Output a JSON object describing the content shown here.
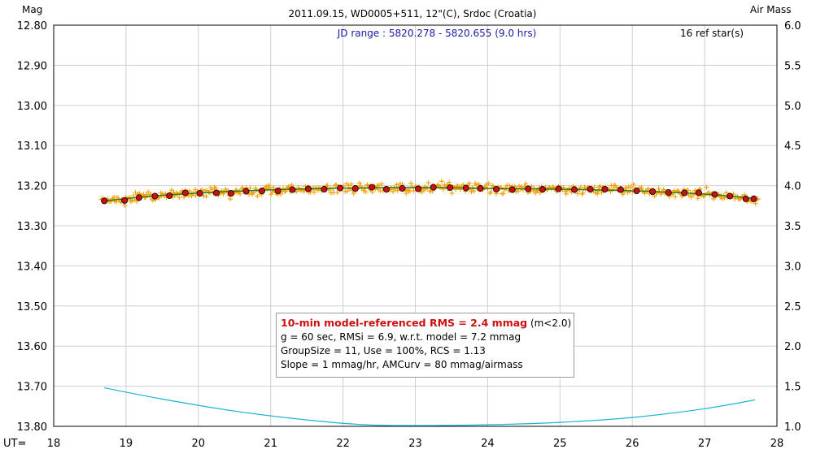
{
  "chart_data": {
    "type": "scatter",
    "title": "2011.09.15, WD0005+511, 12\"(C), Srdoc (Croatia)",
    "subtitle": "JD range : 5820.278 - 5820.655 (9.0 hrs)",
    "ref_stars": "16 ref star(s)",
    "ylabel": "Mag",
    "y2label": "Air Mass",
    "xlabel": "UT=",
    "xlim": [
      18,
      28
    ],
    "ylim": [
      12.8,
      13.8
    ],
    "y2lim": [
      1.0,
      6.0
    ],
    "y_inverted": true,
    "x_ticks": [
      "18",
      "19",
      "20",
      "21",
      "22",
      "23",
      "24",
      "25",
      "26",
      "27",
      "28"
    ],
    "y_ticks": [
      "12.80",
      "12.90",
      "13.00",
      "13.10",
      "13.20",
      "13.30",
      "13.40",
      "13.50",
      "13.60",
      "13.70",
      "13.80"
    ],
    "y2_ticks": [
      "6.0",
      "5.5",
      "5.0",
      "4.5",
      "4.0",
      "3.5",
      "3.0",
      "2.5",
      "2.0",
      "1.5",
      "1.0"
    ],
    "grid": true,
    "series": [
      {
        "kind": "binned",
        "color": "#cc1010",
        "x": [
          18.7,
          18.98,
          19.18,
          19.4,
          19.6,
          19.82,
          20.02,
          20.25,
          20.45,
          20.66,
          20.88,
          21.1,
          21.3,
          21.52,
          21.74,
          21.96,
          22.17,
          22.4,
          22.6,
          22.82,
          23.04,
          23.25,
          23.48,
          23.7,
          23.9,
          24.12,
          24.34,
          24.56,
          24.76,
          24.98,
          25.2,
          25.42,
          25.62,
          25.84,
          26.06,
          26.28,
          26.5,
          26.72,
          26.92,
          27.14,
          27.35,
          27.57,
          27.68
        ],
        "y": [
          13.238,
          13.237,
          13.23,
          13.226,
          13.225,
          13.218,
          13.219,
          13.218,
          13.219,
          13.214,
          13.213,
          13.213,
          13.21,
          13.208,
          13.209,
          13.206,
          13.207,
          13.204,
          13.209,
          13.207,
          13.208,
          13.204,
          13.205,
          13.206,
          13.207,
          13.209,
          13.21,
          13.208,
          13.209,
          13.208,
          13.21,
          13.209,
          13.209,
          13.21,
          13.213,
          13.215,
          13.217,
          13.218,
          13.218,
          13.222,
          13.226,
          13.233,
          13.233
        ]
      },
      {
        "kind": "model",
        "color": "#2a7a2a",
        "x": [
          18.7,
          19.5,
          20.5,
          21.5,
          22.5,
          23.3,
          24.0,
          25.0,
          26.0,
          27.0,
          27.7
        ],
        "y": [
          13.238,
          13.224,
          13.214,
          13.208,
          13.205,
          13.205,
          13.207,
          13.209,
          13.213,
          13.221,
          13.232
        ]
      },
      {
        "kind": "airmass",
        "color": "#19b4d4",
        "axis": "right",
        "x": [
          18.7,
          19.5,
          20.5,
          21.5,
          22.3,
          23.0,
          24.0,
          25.0,
          26.0,
          27.0,
          27.7
        ],
        "y": [
          1.48,
          1.34,
          1.19,
          1.08,
          1.02,
          1.01,
          1.02,
          1.05,
          1.11,
          1.22,
          1.33
        ]
      }
    ]
  },
  "info": {
    "line1_bold": "10-min model-referenced RMS = 2.4 mmag",
    "line1_suffix": " (m<2.0)",
    "line2": "g = 60 sec, RMSi = 6.9, w.r.t. model = 7.2 mmag",
    "line3": "GroupSize = 11, Use = 100%, RCS = 1.13",
    "line4": "Slope = 1 mmag/hr, AMCurv = 80 mmag/airmass"
  }
}
